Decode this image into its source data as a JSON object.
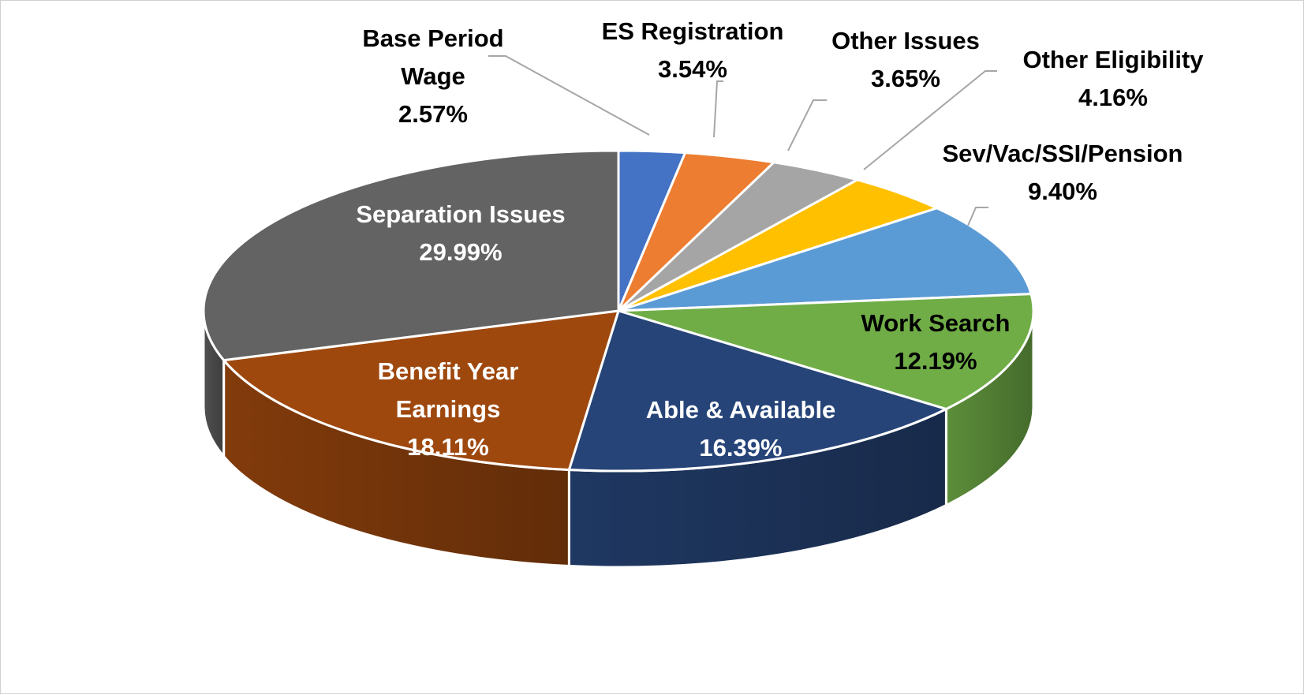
{
  "chart_data": {
    "type": "pie",
    "style": "3d-exploded-none",
    "categories": [
      "Base Period Wage",
      "ES Registration",
      "Other Issues",
      "Other Eligibility",
      "Sev/Vac/SSI/Pension",
      "Work Search",
      "Able & Available",
      "Benefit Year Earnings",
      "Separation Issues"
    ],
    "values": [
      2.57,
      3.54,
      3.65,
      4.16,
      9.4,
      12.19,
      16.39,
      18.11,
      29.99
    ],
    "value_labels": [
      "2.57%",
      "3.54%",
      "3.65%",
      "4.16%",
      "9.40%",
      "12.19%",
      "16.39%",
      "18.11%",
      "29.99%"
    ],
    "colors": [
      "#4472C4",
      "#ED7D31",
      "#A5A5A5",
      "#FFC000",
      "#5B9BD5",
      "#70AD47",
      "#264478",
      "#9E480E",
      "#636363"
    ],
    "label_colors": [
      "#000000",
      "#000000",
      "#000000",
      "#000000",
      "#000000",
      "#000000",
      "#ffffff",
      "#ffffff",
      "#ffffff"
    ],
    "title": "",
    "legend": "none",
    "data_labels": "category-and-percent"
  }
}
